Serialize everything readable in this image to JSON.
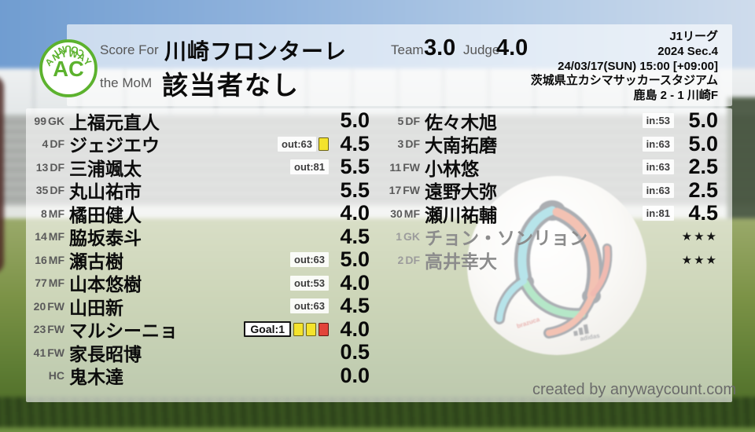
{
  "brand": {
    "logo_top": "ANYWAY",
    "logo_center": "AC",
    "logo_bottom": "COUNT",
    "accent_green": "#5cb22e"
  },
  "header": {
    "score_for_label": "Score For",
    "team_name": "川崎フロンターレ",
    "mom_label": "the MoM",
    "mom_value": "該当者なし",
    "team_label": "Team",
    "team_score": "3.0",
    "judge_label": "Judge",
    "judge_score": "4.0",
    "match": {
      "league": "J1リーグ",
      "season": "2024 Sec.4",
      "datetime": "24/03/17(SUN) 15:00 [+09:00]",
      "venue": "茨城県立カシマサッカースタジアム",
      "result": "鹿島 2 - 1 川崎F"
    }
  },
  "left_players": [
    {
      "num": "99",
      "pos": "GK",
      "name": "上福元直人",
      "rating": "5.0",
      "badge": "",
      "badge_type": "",
      "cards": []
    },
    {
      "num": "4",
      "pos": "DF",
      "name": "ジェジエウ",
      "rating": "4.5",
      "badge": "out:63",
      "badge_type": "sub",
      "cards": [
        "yellow"
      ]
    },
    {
      "num": "13",
      "pos": "DF",
      "name": "三浦颯太",
      "rating": "5.5",
      "badge": "out:81",
      "badge_type": "sub",
      "cards": []
    },
    {
      "num": "35",
      "pos": "DF",
      "name": "丸山祐市",
      "rating": "5.5",
      "badge": "",
      "badge_type": "",
      "cards": []
    },
    {
      "num": "8",
      "pos": "MF",
      "name": "橘田健人",
      "rating": "4.0",
      "badge": "",
      "badge_type": "",
      "cards": []
    },
    {
      "num": "14",
      "pos": "MF",
      "name": "脇坂泰斗",
      "rating": "4.5",
      "badge": "",
      "badge_type": "",
      "cards": []
    },
    {
      "num": "16",
      "pos": "MF",
      "name": "瀬古樹",
      "rating": "5.0",
      "badge": "out:63",
      "badge_type": "sub",
      "cards": []
    },
    {
      "num": "77",
      "pos": "MF",
      "name": "山本悠樹",
      "rating": "4.0",
      "badge": "out:53",
      "badge_type": "sub",
      "cards": []
    },
    {
      "num": "20",
      "pos": "FW",
      "name": "山田新",
      "rating": "4.5",
      "badge": "out:63",
      "badge_type": "sub",
      "cards": []
    },
    {
      "num": "23",
      "pos": "FW",
      "name": "マルシーニョ",
      "rating": "4.0",
      "badge": "Goal:1",
      "badge_type": "goal",
      "cards": [
        "yellow",
        "yellow",
        "red"
      ]
    },
    {
      "num": "41",
      "pos": "FW",
      "name": "家長昭博",
      "rating": "0.5",
      "badge": "",
      "badge_type": "",
      "cards": []
    },
    {
      "num": "",
      "pos": "HC",
      "name": "鬼木達",
      "rating": "0.0",
      "badge": "",
      "badge_type": "",
      "cards": []
    }
  ],
  "right_players": [
    {
      "num": "5",
      "pos": "DF",
      "name": "佐々木旭",
      "rating": "5.0",
      "badge": "in:53",
      "badge_type": "sub",
      "cards": [],
      "unused": false
    },
    {
      "num": "3",
      "pos": "DF",
      "name": "大南拓磨",
      "rating": "5.0",
      "badge": "in:63",
      "badge_type": "sub",
      "cards": [],
      "unused": false
    },
    {
      "num": "11",
      "pos": "FW",
      "name": "小林悠",
      "rating": "2.5",
      "badge": "in:63",
      "badge_type": "sub",
      "cards": [],
      "unused": false
    },
    {
      "num": "17",
      "pos": "FW",
      "name": "遠野大弥",
      "rating": "2.5",
      "badge": "in:63",
      "badge_type": "sub",
      "cards": [],
      "unused": false
    },
    {
      "num": "30",
      "pos": "MF",
      "name": "瀬川祐輔",
      "rating": "4.5",
      "badge": "in:81",
      "badge_type": "sub",
      "cards": [],
      "unused": false
    },
    {
      "num": "1",
      "pos": "GK",
      "name": "チョン・ソンリョン",
      "rating": "★★★",
      "badge": "",
      "badge_type": "",
      "cards": [],
      "unused": true
    },
    {
      "num": "2",
      "pos": "DF",
      "name": "高井幸大",
      "rating": "★★★",
      "badge": "",
      "badge_type": "",
      "cards": [],
      "unused": true
    }
  ],
  "footer": {
    "credit": "created by anywaycount.com"
  },
  "colors": {
    "card_yellow": "#f4e32c",
    "card_red": "#e2443a",
    "panel_overlay": "rgba(255,255,255,0.62)",
    "logo_green": "#5cb22e"
  }
}
